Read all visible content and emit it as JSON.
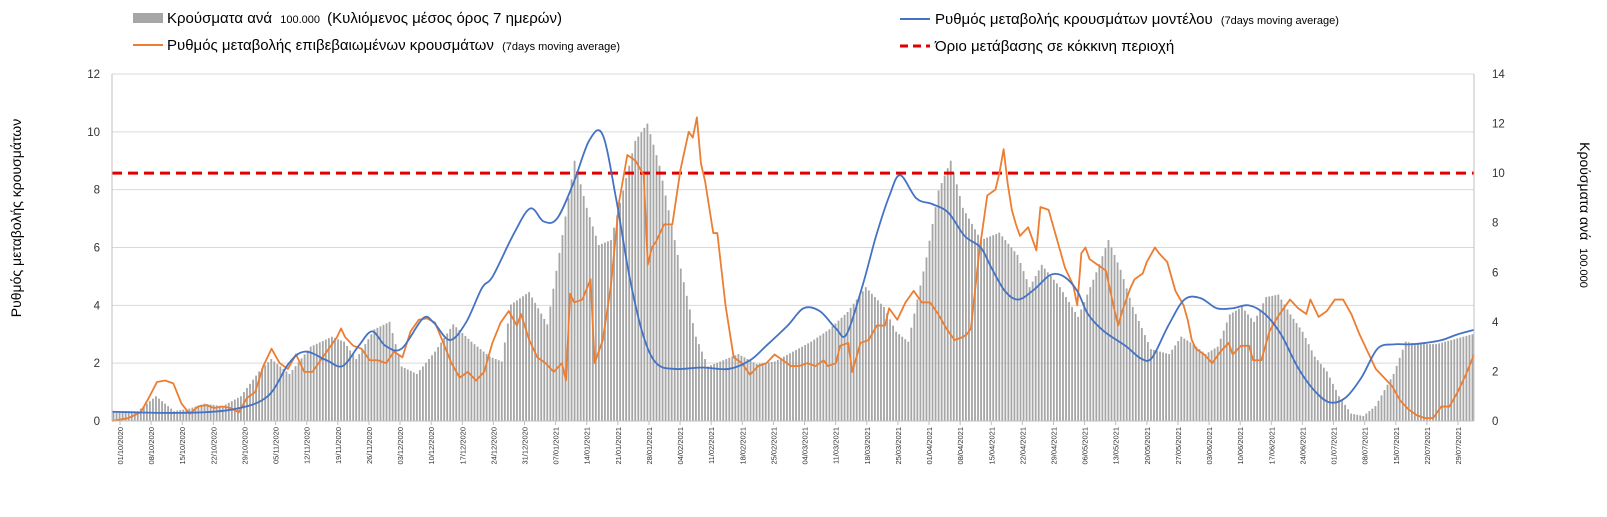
{
  "chart_data": {
    "type": "bar+line",
    "legend": {
      "bars_label": "Κρούσματα ανά",
      "bars_label_small": "100.000",
      "bars_label_rest": "(Κυλιόμενος μέσος όρος 7 ημερών)",
      "model_label": "Ρυθμός μεταβολής κρουσμάτων μοντέλου",
      "model_label_small": "(7days moving average)",
      "confirmed_label": "Ρυθμός μεταβολής επιβεβαιωμένων κρουσμάτων",
      "confirmed_label_small": "(7days moving average)",
      "threshold_label": "Όριο μετάβασης σε κόκκινη περιοχή"
    },
    "ylabel_left": "Ρυθμός μεταβολής κρουσμάτων",
    "ylabel_right": "Κρούσματα ανά",
    "ylabel_right_small": "100.000",
    "y_left": {
      "min": 0,
      "max": 12,
      "ticks": [
        "0",
        "2",
        "4",
        "6",
        "8",
        "10",
        "12"
      ]
    },
    "y_right": {
      "min": 0,
      "max": 14,
      "ticks": [
        "0",
        "2",
        "4",
        "6",
        "8",
        "10",
        "12",
        "14"
      ]
    },
    "threshold_right": 10,
    "colors": {
      "bars": "#a6a6a6",
      "model": "#4472c4",
      "confirmed": "#ed7d31",
      "threshold": "#e00000"
    },
    "x_dates": [
      "01/10/2020",
      "08/10/2020",
      "15/10/2020",
      "22/10/2020",
      "29/10/2020",
      "05/11/2020",
      "12/11/2020",
      "19/11/2020",
      "26/11/2020",
      "03/12/2020",
      "10/12/2020",
      "17/12/2020",
      "24/12/2020",
      "31/12/2020",
      "07/01/2021",
      "14/01/2021",
      "21/01/2021",
      "28/01/2021",
      "04/02/2021",
      "11/02/2021",
      "18/02/2021",
      "25/02/2021",
      "04/03/2021",
      "11/03/2021",
      "18/03/2021",
      "25/03/2021",
      "01/04/2021",
      "08/04/2021",
      "15/04/2021",
      "22/04/2021",
      "29/04/2021",
      "06/05/2021",
      "13/05/2021",
      "20/05/2021",
      "27/05/2021",
      "03/06/2021",
      "10/06/2021",
      "17/06/2021",
      "24/06/2021",
      "01/07/2021",
      "08/07/2021",
      "15/07/2021",
      "22/07/2021",
      "29/07/2021"
    ],
    "bars_anchors": [
      [
        0,
        0.4
      ],
      [
        8,
        0.4
      ],
      [
        14,
        1.0
      ],
      [
        20,
        0.4
      ],
      [
        25,
        0.5
      ],
      [
        30,
        0.7
      ],
      [
        36,
        0.6
      ],
      [
        42,
        1.0
      ],
      [
        48,
        2.0
      ],
      [
        52,
        2.5
      ],
      [
        58,
        1.9
      ],
      [
        65,
        3.0
      ],
      [
        72,
        3.4
      ],
      [
        76,
        3.2
      ],
      [
        80,
        2.5
      ],
      [
        86,
        3.7
      ],
      [
        91,
        4.0
      ],
      [
        95,
        2.2
      ],
      [
        100,
        1.9
      ],
      [
        106,
        2.8
      ],
      [
        112,
        3.9
      ],
      [
        118,
        3.2
      ],
      [
        124,
        2.6
      ],
      [
        128,
        2.4
      ],
      [
        131,
        4.7
      ],
      [
        137,
        5.2
      ],
      [
        143,
        3.9
      ],
      [
        148,
        7.5
      ],
      [
        152,
        10.5
      ],
      [
        156,
        8.6
      ],
      [
        160,
        7.1
      ],
      [
        164,
        7.3
      ],
      [
        168,
        9.3
      ],
      [
        172,
        11.3
      ],
      [
        176,
        12.0
      ],
      [
        180,
        10.3
      ],
      [
        186,
        6.7
      ],
      [
        192,
        3.4
      ],
      [
        196,
        2.2
      ],
      [
        200,
        2.4
      ],
      [
        206,
        2.7
      ],
      [
        212,
        2.3
      ],
      [
        218,
        2.4
      ],
      [
        224,
        2.8
      ],
      [
        230,
        3.2
      ],
      [
        236,
        3.7
      ],
      [
        242,
        4.4
      ],
      [
        248,
        5.4
      ],
      [
        254,
        4.6
      ],
      [
        258,
        3.6
      ],
      [
        262,
        3.2
      ],
      [
        268,
        6.6
      ],
      [
        272,
        9.3
      ],
      [
        276,
        10.5
      ],
      [
        280,
        8.6
      ],
      [
        286,
        7.3
      ],
      [
        292,
        7.6
      ],
      [
        298,
        6.7
      ],
      [
        302,
        5.4
      ],
      [
        306,
        6.3
      ],
      [
        312,
        5.4
      ],
      [
        318,
        4.2
      ],
      [
        324,
        6.0
      ],
      [
        328,
        7.3
      ],
      [
        332,
        6.1
      ],
      [
        336,
        4.6
      ],
      [
        342,
        2.9
      ],
      [
        348,
        2.7
      ],
      [
        352,
        3.4
      ],
      [
        356,
        3.1
      ],
      [
        360,
        2.7
      ],
      [
        364,
        3.0
      ],
      [
        368,
        4.3
      ],
      [
        372,
        4.6
      ],
      [
        376,
        4.0
      ],
      [
        380,
        5.0
      ],
      [
        384,
        5.1
      ],
      [
        388,
        4.3
      ],
      [
        392,
        3.6
      ],
      [
        396,
        2.6
      ],
      [
        400,
        2.0
      ],
      [
        404,
        1.0
      ],
      [
        408,
        0.3
      ],
      [
        412,
        0.2
      ],
      [
        416,
        0.6
      ],
      [
        422,
        1.9
      ],
      [
        426,
        3.2
      ],
      [
        430,
        3.1
      ],
      [
        436,
        3.1
      ],
      [
        442,
        3.3
      ],
      [
        448,
        3.5
      ]
    ],
    "model_anchors": [
      [
        0,
        0.32
      ],
      [
        25,
        0.28
      ],
      [
        45,
        0.4
      ],
      [
        58,
        0.85
      ],
      [
        66,
        2.0
      ],
      [
        72,
        2.4
      ],
      [
        80,
        2.1
      ],
      [
        86,
        1.9
      ],
      [
        92,
        2.6
      ],
      [
        97,
        3.1
      ],
      [
        102,
        2.6
      ],
      [
        108,
        2.5
      ],
      [
        116,
        3.55
      ],
      [
        120,
        3.4
      ],
      [
        126,
        2.8
      ],
      [
        132,
        3.4
      ],
      [
        138,
        4.6
      ],
      [
        142,
        5.0
      ],
      [
        150,
        6.5
      ],
      [
        156,
        7.35
      ],
      [
        161,
        6.9
      ],
      [
        166,
        7.0
      ],
      [
        172,
        8.2
      ],
      [
        178,
        9.7
      ],
      [
        183,
        9.9
      ],
      [
        188,
        7.7
      ],
      [
        193,
        5.0
      ],
      [
        198,
        3.0
      ],
      [
        203,
        2.0
      ],
      [
        210,
        1.8
      ],
      [
        220,
        1.85
      ],
      [
        230,
        1.8
      ],
      [
        238,
        2.1
      ],
      [
        244,
        2.6
      ],
      [
        252,
        3.3
      ],
      [
        258,
        3.9
      ],
      [
        264,
        3.8
      ],
      [
        270,
        3.2
      ],
      [
        274,
        3.0
      ],
      [
        280,
        4.7
      ],
      [
        285,
        6.4
      ],
      [
        290,
        7.8
      ],
      [
        294,
        8.5
      ],
      [
        300,
        7.7
      ],
      [
        306,
        7.5
      ],
      [
        312,
        7.2
      ],
      [
        318,
        6.4
      ],
      [
        324,
        6.0
      ],
      [
        328,
        5.3
      ],
      [
        333,
        4.5
      ],
      [
        338,
        4.2
      ],
      [
        344,
        4.55
      ],
      [
        350,
        5.05
      ],
      [
        355,
        5.0
      ],
      [
        360,
        4.5
      ],
      [
        364,
        3.7
      ],
      [
        370,
        3.1
      ],
      [
        378,
        2.6
      ],
      [
        384,
        2.15
      ],
      [
        388,
        2.2
      ],
      [
        394,
        3.3
      ],
      [
        400,
        4.2
      ],
      [
        406,
        4.25
      ],
      [
        412,
        3.9
      ],
      [
        418,
        3.9
      ],
      [
        424,
        4.0
      ],
      [
        430,
        3.7
      ],
      [
        436,
        3.0
      ],
      [
        442,
        1.9
      ],
      [
        448,
        1.1
      ],
      [
        454,
        0.65
      ],
      [
        460,
        0.8
      ],
      [
        466,
        1.5
      ],
      [
        472,
        2.5
      ],
      [
        478,
        2.65
      ],
      [
        484,
        2.65
      ],
      [
        490,
        2.7
      ],
      [
        496,
        2.8
      ],
      [
        502,
        3.0
      ],
      [
        508,
        3.15
      ]
    ],
    "confirmed_anchors": [
      [
        0,
        0.0
      ],
      [
        8,
        0.1
      ],
      [
        14,
        0.3
      ],
      [
        18,
        0.8
      ],
      [
        22,
        1.35
      ],
      [
        26,
        1.4
      ],
      [
        30,
        1.3
      ],
      [
        34,
        0.6
      ],
      [
        38,
        0.25
      ],
      [
        42,
        0.5
      ],
      [
        46,
        0.55
      ],
      [
        50,
        0.45
      ],
      [
        54,
        0.5
      ],
      [
        58,
        0.45
      ],
      [
        62,
        0.3
      ],
      [
        66,
        0.8
      ],
      [
        70,
        1.0
      ],
      [
        74,
        1.9
      ],
      [
        78,
        2.5
      ],
      [
        82,
        2.0
      ],
      [
        86,
        1.8
      ],
      [
        90,
        2.3
      ],
      [
        94,
        1.7
      ],
      [
        98,
        1.7
      ],
      [
        102,
        2.1
      ],
      [
        106,
        2.5
      ],
      [
        110,
        2.9
      ],
      [
        112,
        3.2
      ],
      [
        114,
        2.9
      ],
      [
        118,
        2.6
      ],
      [
        122,
        2.5
      ],
      [
        126,
        2.1
      ],
      [
        130,
        2.1
      ],
      [
        134,
        2.0
      ],
      [
        138,
        2.4
      ],
      [
        142,
        2.2
      ],
      [
        146,
        3.1
      ],
      [
        150,
        3.5
      ],
      [
        154,
        3.55
      ],
      [
        158,
        3.4
      ],
      [
        162,
        2.7
      ],
      [
        166,
        2.0
      ],
      [
        170,
        1.5
      ],
      [
        174,
        1.7
      ],
      [
        178,
        1.4
      ],
      [
        182,
        1.7
      ],
      [
        186,
        2.7
      ],
      [
        190,
        3.4
      ],
      [
        194,
        3.8
      ],
      [
        198,
        3.3
      ],
      [
        200,
        3.7
      ],
      [
        204,
        2.8
      ],
      [
        208,
        2.2
      ],
      [
        212,
        2.0
      ],
      [
        216,
        1.7
      ],
      [
        220,
        2.0
      ],
      [
        222,
        1.4
      ],
      [
        224,
        4.4
      ],
      [
        226,
        4.1
      ],
      [
        230,
        4.2
      ],
      [
        234,
        4.9
      ],
      [
        236,
        2.0
      ],
      [
        240,
        2.8
      ],
      [
        244,
        4.7
      ],
      [
        248,
        7.6
      ],
      [
        252,
        9.2
      ],
      [
        256,
        9.0
      ],
      [
        260,
        8.5
      ],
      [
        262,
        5.4
      ],
      [
        264,
        6.0
      ],
      [
        266,
        6.2
      ],
      [
        270,
        6.8
      ],
      [
        274,
        6.8
      ],
      [
        278,
        8.7
      ],
      [
        282,
        10.0
      ],
      [
        284,
        9.8
      ],
      [
        286,
        10.5
      ],
      [
        288,
        8.9
      ],
      [
        290,
        8.3
      ],
      [
        294,
        6.5
      ],
      [
        296,
        6.5
      ],
      [
        300,
        4.0
      ],
      [
        304,
        2.2
      ],
      [
        308,
        2.0
      ],
      [
        312,
        1.6
      ],
      [
        316,
        1.9
      ],
      [
        320,
        2.0
      ],
      [
        324,
        2.3
      ],
      [
        328,
        2.1
      ],
      [
        332,
        1.9
      ],
      [
        336,
        1.9
      ],
      [
        340,
        2.0
      ],
      [
        344,
        1.9
      ],
      [
        348,
        2.1
      ],
      [
        350,
        1.9
      ],
      [
        354,
        2.0
      ],
      [
        356,
        2.6
      ],
      [
        360,
        2.7
      ],
      [
        362,
        1.7
      ],
      [
        366,
        2.7
      ],
      [
        370,
        2.8
      ],
      [
        374,
        3.3
      ],
      [
        378,
        3.3
      ],
      [
        380,
        3.9
      ],
      [
        384,
        3.5
      ],
      [
        388,
        4.1
      ],
      [
        392,
        4.5
      ],
      [
        396,
        4.1
      ],
      [
        400,
        4.1
      ],
      [
        404,
        3.7
      ],
      [
        408,
        3.2
      ],
      [
        412,
        2.8
      ],
      [
        416,
        2.9
      ],
      [
        418,
        3.0
      ],
      [
        420,
        3.2
      ],
      [
        424,
        5.8
      ],
      [
        428,
        7.8
      ],
      [
        432,
        8.0
      ],
      [
        434,
        8.6
      ],
      [
        436,
        9.4
      ],
      [
        438,
        8.2
      ],
      [
        440,
        7.3
      ],
      [
        442,
        6.8
      ],
      [
        444,
        6.4
      ],
      [
        448,
        6.7
      ],
      [
        452,
        5.9
      ],
      [
        454,
        7.4
      ],
      [
        458,
        7.3
      ],
      [
        462,
        6.3
      ],
      [
        466,
        5.3
      ],
      [
        470,
        4.7
      ],
      [
        472,
        4.0
      ],
      [
        474,
        5.8
      ],
      [
        476,
        6.0
      ],
      [
        478,
        5.6
      ],
      [
        482,
        5.4
      ],
      [
        486,
        5.2
      ],
      [
        490,
        3.9
      ],
      [
        492,
        3.3
      ],
      [
        494,
        3.8
      ],
      [
        498,
        4.6
      ],
      [
        500,
        4.9
      ],
      [
        504,
        5.1
      ],
      [
        506,
        5.5
      ],
      [
        510,
        6.0
      ],
      [
        512,
        5.8
      ],
      [
        516,
        5.5
      ],
      [
        520,
        4.5
      ],
      [
        524,
        4.0
      ],
      [
        526,
        3.5
      ],
      [
        528,
        2.8
      ],
      [
        530,
        2.5
      ],
      [
        534,
        2.3
      ],
      [
        538,
        2.0
      ],
      [
        542,
        2.4
      ],
      [
        546,
        2.7
      ],
      [
        548,
        2.3
      ],
      [
        552,
        2.6
      ],
      [
        556,
        2.6
      ],
      [
        558,
        2.1
      ],
      [
        562,
        2.1
      ],
      [
        566,
        3.1
      ],
      [
        570,
        3.6
      ],
      [
        574,
        4.0
      ],
      [
        576,
        4.2
      ],
      [
        580,
        3.9
      ],
      [
        584,
        3.7
      ],
      [
        586,
        4.2
      ],
      [
        590,
        3.6
      ],
      [
        594,
        3.8
      ],
      [
        598,
        4.2
      ],
      [
        602,
        4.2
      ],
      [
        606,
        3.7
      ],
      [
        610,
        3.0
      ],
      [
        614,
        2.4
      ],
      [
        618,
        1.8
      ],
      [
        622,
        1.5
      ],
      [
        626,
        1.2
      ],
      [
        630,
        0.7
      ],
      [
        634,
        0.4
      ],
      [
        638,
        0.2
      ],
      [
        642,
        0.1
      ],
      [
        646,
        0.1
      ],
      [
        650,
        0.5
      ],
      [
        654,
        0.5
      ],
      [
        658,
        1.0
      ],
      [
        662,
        1.6
      ],
      [
        666,
        2.3
      ]
    ],
    "confirmed_index_span": 666
  }
}
